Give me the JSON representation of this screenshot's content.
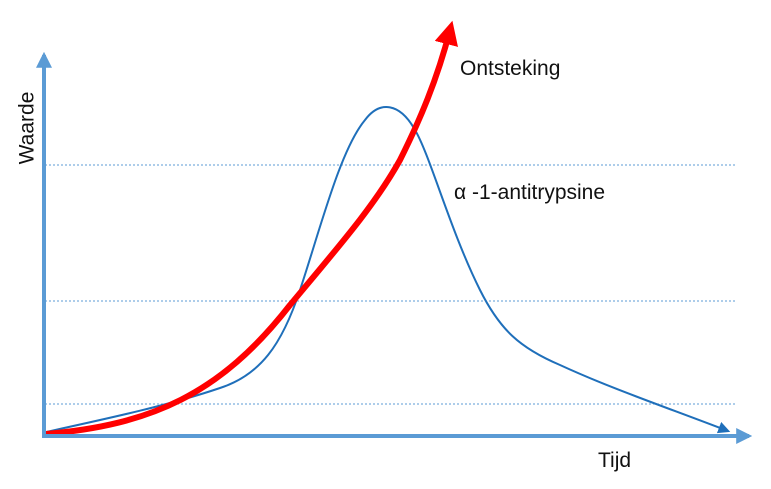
{
  "diagram": {
    "y_axis_label": "Waarde",
    "x_axis_label": "Tijd",
    "red_curve_label": "Ontsteking",
    "blue_curve_label": "α -1-antitrypsine"
  },
  "colors": {
    "axis": "#5b9bd5",
    "gridline": "#5b9bd5",
    "blue_curve": "#1f6fba",
    "red_curve": "#ff0000",
    "text": "#111111"
  }
}
